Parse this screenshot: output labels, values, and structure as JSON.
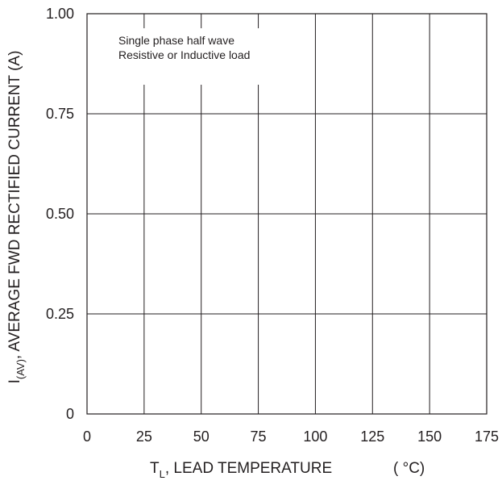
{
  "chart_data": {
    "type": "line",
    "title": "",
    "annotation": {
      "line1": "Single phase half wave",
      "line2": "Resistive or Inductive load"
    },
    "xlabel": {
      "prefix": "T",
      "subscript": "L",
      "text": ", LEAD TEMPERATURE",
      "unit": "( °C)"
    },
    "ylabel": {
      "prefix": "I",
      "subscript": "(AV)",
      "text": ", AVERAGE FWD RECTIFIED CURRENT (A)"
    },
    "xlim": [
      0,
      175
    ],
    "ylim": [
      0,
      1.0
    ],
    "x_ticks": [
      {
        "value": 0,
        "label": "0"
      },
      {
        "value": 25,
        "label": "25"
      },
      {
        "value": 50,
        "label": "50"
      },
      {
        "value": 75,
        "label": "75"
      },
      {
        "value": 100,
        "label": "100"
      },
      {
        "value": 125,
        "label": "125"
      },
      {
        "value": 150,
        "label": "150"
      },
      {
        "value": 175,
        "label": "175"
      }
    ],
    "y_ticks": [
      {
        "value": 0,
        "label": "0"
      },
      {
        "value": 0.25,
        "label": "0.25"
      },
      {
        "value": 0.5,
        "label": "0.50"
      },
      {
        "value": 0.75,
        "label": "0.75"
      },
      {
        "value": 1.0,
        "label": "1.00"
      }
    ],
    "grid": true,
    "series": [],
    "colors": {
      "ink": "#231f20",
      "background": "#ffffff"
    }
  }
}
